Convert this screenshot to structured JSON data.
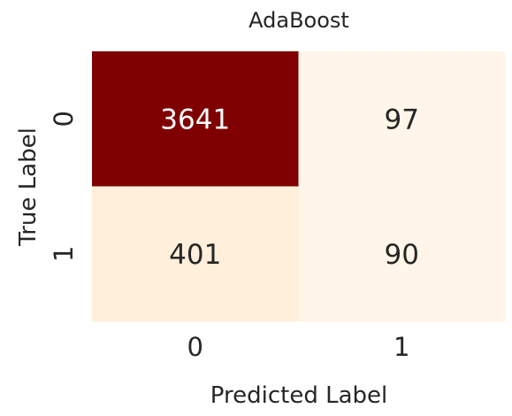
{
  "chart_data": {
    "type": "heatmap",
    "title": "AdaBoost",
    "xlabel": "Predicted Label",
    "ylabel": "True Label",
    "x_categories": [
      "0",
      "1"
    ],
    "y_categories": [
      "0",
      "1"
    ],
    "matrix": [
      [
        3641,
        97
      ],
      [
        401,
        90
      ]
    ],
    "colormap": {
      "low": "#fff5e8",
      "mid": "#fdd49e",
      "high": "#7f0000"
    },
    "grid": false,
    "colorbar": false
  }
}
